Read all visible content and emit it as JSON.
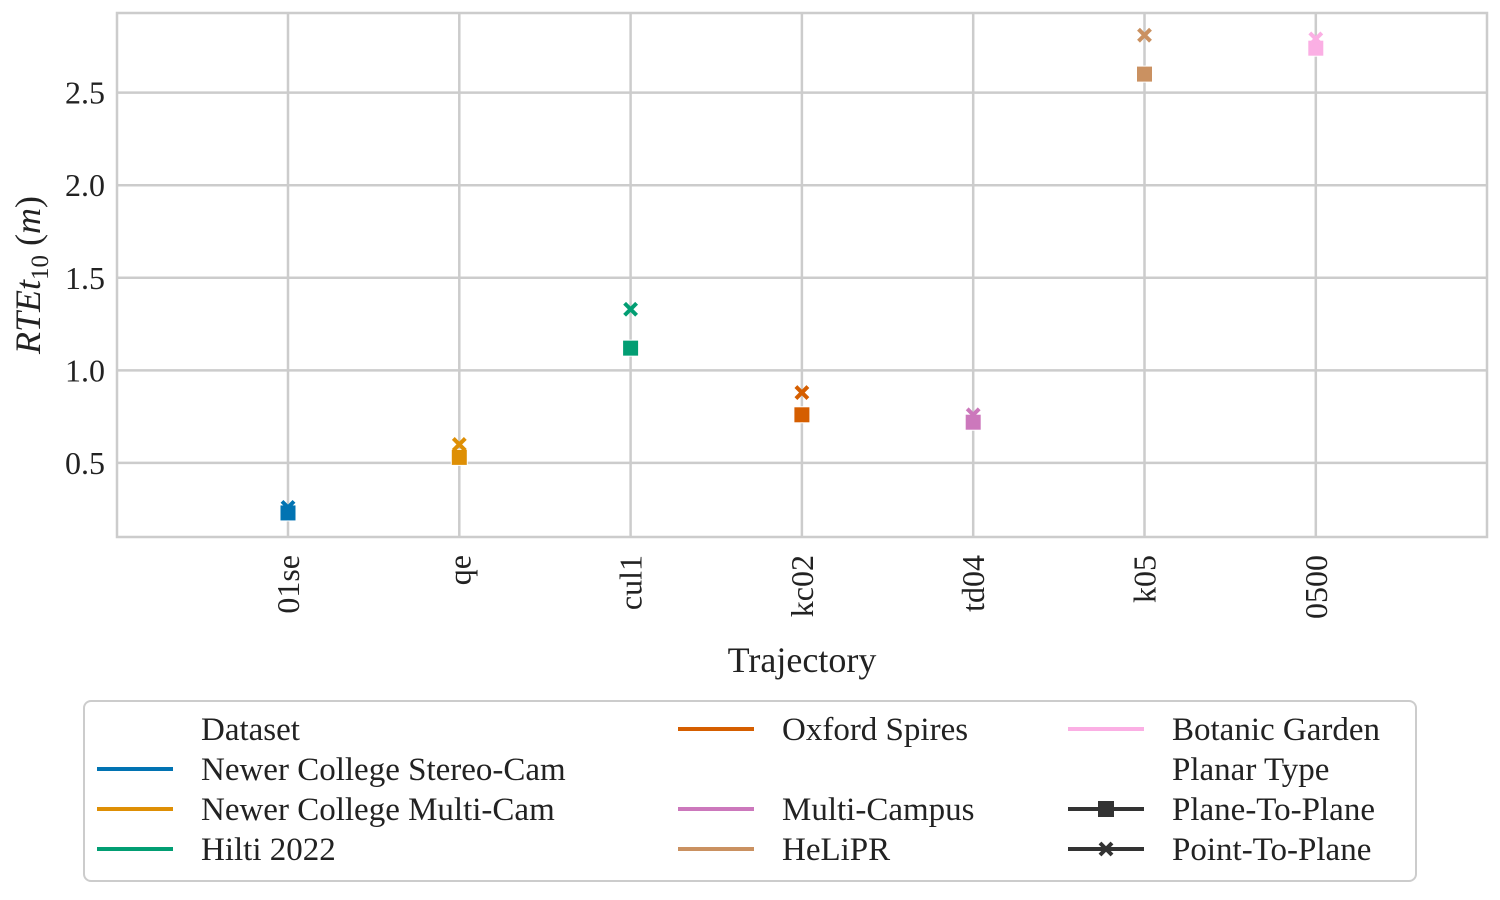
{
  "chart_data": {
    "type": "scatter",
    "xlabel": "Trajectory",
    "ylabel_main": "RTEt",
    "ylabel_sub": "10",
    "ylabel_unit": "m",
    "categories": [
      "01se",
      "qe",
      "cul1",
      "kc02",
      "td04",
      "k05",
      "0500"
    ],
    "ylim": [
      0.1,
      2.93
    ],
    "yticks": [
      0.5,
      1.0,
      1.5,
      2.0,
      2.5
    ],
    "ytick_labels": [
      "0.5",
      "1.0",
      "1.5",
      "2.0",
      "2.5"
    ],
    "grid": true,
    "legend_placement": "below",
    "series": [
      {
        "dataset": "Newer College Stereo-Cam",
        "color": "#0173b2",
        "category": "01se",
        "plane_to_plane": 0.23,
        "point_to_plane": 0.26
      },
      {
        "dataset": "Newer College Multi-Cam",
        "color": "#de8f05",
        "category": "qe",
        "plane_to_plane": 0.53,
        "point_to_plane": 0.6
      },
      {
        "dataset": "Hilti 2022",
        "color": "#029e73",
        "category": "cul1",
        "plane_to_plane": 1.12,
        "point_to_plane": 1.33
      },
      {
        "dataset": "Oxford Spires",
        "color": "#d55e00",
        "category": "kc02",
        "plane_to_plane": 0.76,
        "point_to_plane": 0.88
      },
      {
        "dataset": "Multi-Campus",
        "color": "#cc78bc",
        "category": "td04",
        "plane_to_plane": 0.72,
        "point_to_plane": 0.76
      },
      {
        "dataset": "HeLiPR",
        "color": "#ca9161",
        "category": "k05",
        "plane_to_plane": 2.6,
        "point_to_plane": 2.81
      },
      {
        "dataset": "Botanic Garden",
        "color": "#fbafe4",
        "category": "0500",
        "plane_to_plane": 2.74,
        "point_to_plane": 2.79
      }
    ],
    "legend": {
      "dataset_title": "Dataset",
      "type_title": "Planar Type",
      "types": [
        {
          "label": "Plane-To-Plane",
          "marker": "square"
        },
        {
          "label": "Point-To-Plane",
          "marker": "x"
        }
      ]
    }
  }
}
